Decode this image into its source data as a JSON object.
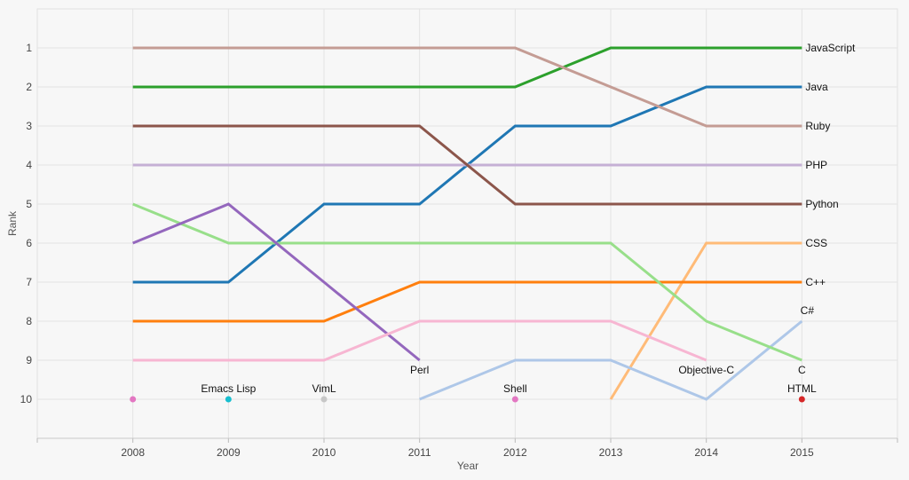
{
  "chart_data": {
    "type": "line",
    "subtype": "bump",
    "xlabel": "Year",
    "ylabel": "Rank",
    "x": [
      2008,
      2009,
      2010,
      2011,
      2012,
      2013,
      2014,
      2015
    ],
    "xlim": [
      2007,
      2016
    ],
    "ylim": [
      0,
      11
    ],
    "y_reversed": true,
    "x_ticks": [
      "2008",
      "2009",
      "2010",
      "2011",
      "2012",
      "2013",
      "2014",
      "2015"
    ],
    "y_ticks": [
      "1",
      "2",
      "3",
      "4",
      "5",
      "6",
      "7",
      "8",
      "9",
      "10"
    ],
    "grid": true,
    "series": [
      {
        "name": "JavaScript",
        "color": "#2ca02c",
        "label_pos": "right",
        "points": [
          [
            2008,
            2
          ],
          [
            2009,
            2
          ],
          [
            2010,
            2
          ],
          [
            2011,
            2
          ],
          [
            2012,
            2
          ],
          [
            2013,
            1
          ],
          [
            2014,
            1
          ],
          [
            2015,
            1
          ]
        ]
      },
      {
        "name": "Java",
        "color": "#1f77b4",
        "label_pos": "right",
        "points": [
          [
            2008,
            7
          ],
          [
            2009,
            7
          ],
          [
            2010,
            5
          ],
          [
            2011,
            5
          ],
          [
            2012,
            3
          ],
          [
            2013,
            3
          ],
          [
            2014,
            2
          ],
          [
            2015,
            2
          ]
        ]
      },
      {
        "name": "Ruby",
        "color": "#c49c94",
        "label_pos": "right",
        "points": [
          [
            2008,
            1
          ],
          [
            2009,
            1
          ],
          [
            2010,
            1
          ],
          [
            2011,
            1
          ],
          [
            2012,
            1
          ],
          [
            2013,
            2
          ],
          [
            2014,
            3
          ],
          [
            2015,
            3
          ]
        ]
      },
      {
        "name": "PHP",
        "color": "#c5b0d5",
        "label_pos": "right",
        "points": [
          [
            2008,
            4
          ],
          [
            2009,
            4
          ],
          [
            2010,
            4
          ],
          [
            2011,
            4
          ],
          [
            2012,
            4
          ],
          [
            2013,
            4
          ],
          [
            2014,
            4
          ],
          [
            2015,
            4
          ]
        ]
      },
      {
        "name": "Python",
        "color": "#8c564b",
        "label_pos": "right",
        "points": [
          [
            2008,
            3
          ],
          [
            2009,
            3
          ],
          [
            2010,
            3
          ],
          [
            2011,
            3
          ],
          [
            2012,
            5
          ],
          [
            2013,
            5
          ],
          [
            2014,
            5
          ],
          [
            2015,
            5
          ]
        ]
      },
      {
        "name": "CSS",
        "color": "#ffbb78",
        "label_pos": "right",
        "points": [
          [
            2013,
            10
          ],
          [
            2014,
            6
          ],
          [
            2015,
            6
          ]
        ]
      },
      {
        "name": "C++",
        "color": "#ff7f0e",
        "label_pos": "right",
        "points": [
          [
            2008,
            8
          ],
          [
            2009,
            8
          ],
          [
            2010,
            8
          ],
          [
            2011,
            7
          ],
          [
            2012,
            7
          ],
          [
            2013,
            7
          ],
          [
            2014,
            7
          ],
          [
            2015,
            7
          ]
        ]
      },
      {
        "name": "C#",
        "color": "#aec7e8",
        "label_pos": "above",
        "points": [
          [
            2011,
            10
          ],
          [
            2012,
            9
          ],
          [
            2013,
            9
          ],
          [
            2014,
            10
          ],
          [
            2015,
            8
          ]
        ]
      },
      {
        "name": "C",
        "color": "#98df8a",
        "label_pos": "below",
        "points": [
          [
            2008,
            5
          ],
          [
            2009,
            6
          ],
          [
            2010,
            6
          ],
          [
            2011,
            6
          ],
          [
            2012,
            6
          ],
          [
            2013,
            6
          ],
          [
            2014,
            8
          ],
          [
            2015,
            9
          ]
        ]
      },
      {
        "name": "Perl",
        "color": "#9467bd",
        "label_pos": "below",
        "points": [
          [
            2008,
            6
          ],
          [
            2009,
            5
          ],
          [
            2010,
            7
          ],
          [
            2011,
            9
          ]
        ]
      },
      {
        "name": "Objective-C",
        "color": "#f7b6d2",
        "label_pos": "below",
        "points": [
          [
            2008,
            9
          ],
          [
            2009,
            9
          ],
          [
            2010,
            9
          ],
          [
            2011,
            8
          ],
          [
            2012,
            8
          ],
          [
            2013,
            8
          ],
          [
            2014,
            9
          ]
        ]
      }
    ],
    "single_points": [
      {
        "name": "",
        "color": "#e377c2",
        "x": 2008,
        "y": 10
      },
      {
        "name": "Emacs Lisp",
        "color": "#17becf",
        "x": 2009,
        "y": 10
      },
      {
        "name": "VimL",
        "color": "#c7c7c7",
        "x": 2010,
        "y": 10
      },
      {
        "name": "Shell",
        "color": "#e377c2",
        "x": 2012,
        "y": 10
      },
      {
        "name": "HTML",
        "color": "#d62728",
        "x": 2015,
        "y": 10
      }
    ]
  }
}
